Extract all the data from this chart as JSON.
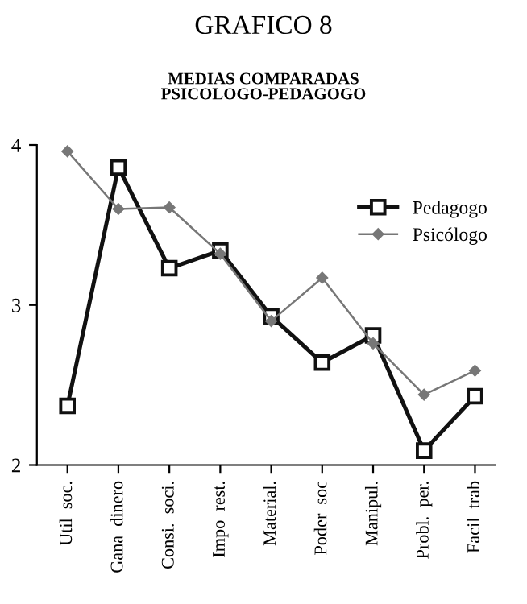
{
  "chart_data": {
    "type": "line",
    "title": "GRAFICO 8",
    "subtitle": "MEDIAS COMPARADAS\nPSICOLOGO-PEDAGOGO",
    "categories": [
      "Util  soc.",
      "Gana  dinero",
      "Consi.  soci.",
      "Impo  rest.",
      "Material.",
      "Poder  soc",
      "Manipul.",
      "Probl.  per.",
      "Facil  trab"
    ],
    "series": [
      {
        "name": "Pedagogo",
        "color": "#111111",
        "marker": "square",
        "values": [
          2.37,
          3.86,
          3.23,
          3.34,
          2.93,
          2.64,
          2.81,
          2.09,
          2.43
        ]
      },
      {
        "name": "Psicólogo",
        "color": "#777777",
        "marker": "diamond",
        "values": [
          3.96,
          3.6,
          3.61,
          3.32,
          2.9,
          3.17,
          2.76,
          2.44,
          2.59
        ]
      }
    ],
    "ylim": [
      2,
      4
    ],
    "yticks": [
      2,
      3,
      4
    ],
    "grid": false,
    "legend": "top right"
  }
}
